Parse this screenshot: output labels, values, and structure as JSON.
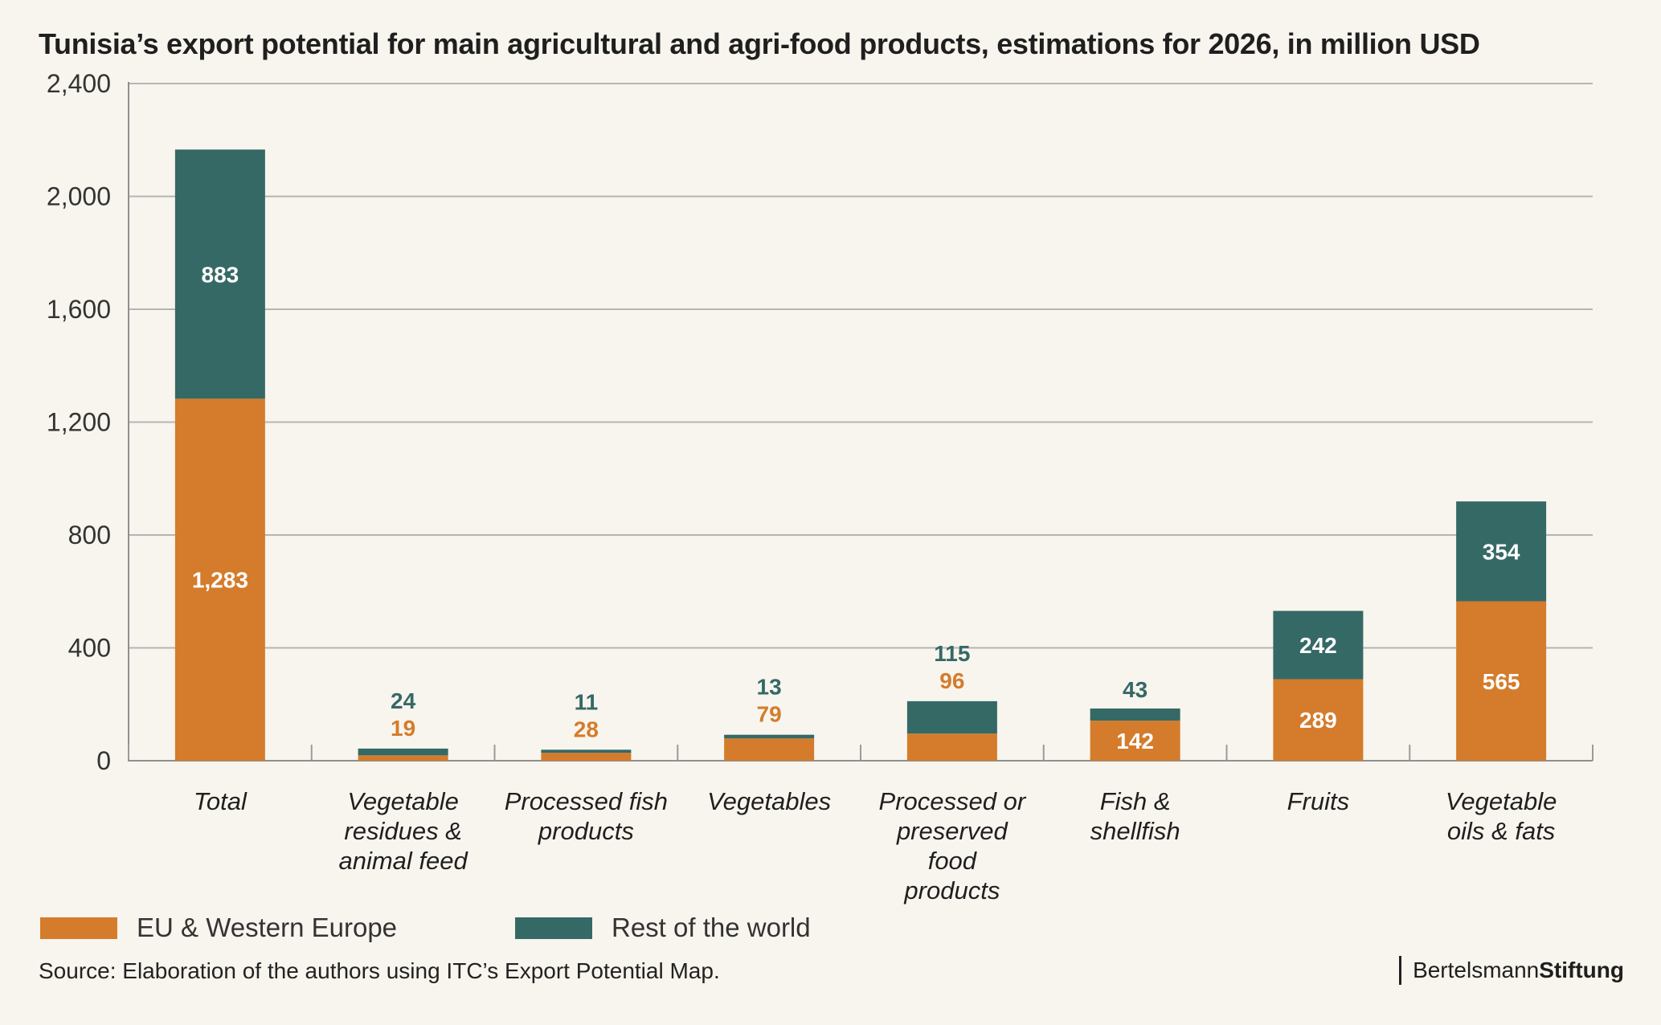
{
  "chart_data": {
    "type": "bar",
    "stacked": true,
    "title": "Tunisia’s export potential for main agricultural and agri-food products, estimations for 2026, in million USD",
    "categories": [
      [
        "Total"
      ],
      [
        "Vegetable",
        "residues &",
        "animal feed"
      ],
      [
        "Processed fish",
        "products"
      ],
      [
        "Vegetables"
      ],
      [
        "Processed or",
        "preserved",
        "food",
        "products"
      ],
      [
        "Fish &",
        "shellfish"
      ],
      [
        "Fruits"
      ],
      [
        "Vegetable",
        "oils & fats"
      ]
    ],
    "series": [
      {
        "name": "EU & Western Europe",
        "color": "#d47c2b",
        "values": [
          1283,
          19,
          28,
          79,
          96,
          142,
          289,
          565
        ],
        "labels": [
          "1,283",
          "19",
          "28",
          "79",
          "96",
          "142",
          "289",
          "565"
        ]
      },
      {
        "name": "Rest of the world",
        "color": "#356966",
        "values": [
          883,
          24,
          11,
          13,
          115,
          43,
          242,
          354
        ],
        "labels": [
          "883",
          "24",
          "11",
          "13",
          "115",
          "43",
          "242",
          "354"
        ]
      }
    ],
    "ylim": [
      0,
      2400
    ],
    "yticks": [
      0,
      400,
      800,
      1200,
      1600,
      2000,
      2400
    ],
    "ytick_labels": [
      "0",
      "400",
      "800",
      "1,200",
      "1,600",
      "2,000",
      "2,400"
    ],
    "grid": true,
    "legend_position": "bottom-left"
  },
  "source": "Source: Elaboration of the authors using ITC’s Export Potential Map.",
  "logo": {
    "part1": "Bertelsmann",
    "part2": "Stiftung"
  }
}
